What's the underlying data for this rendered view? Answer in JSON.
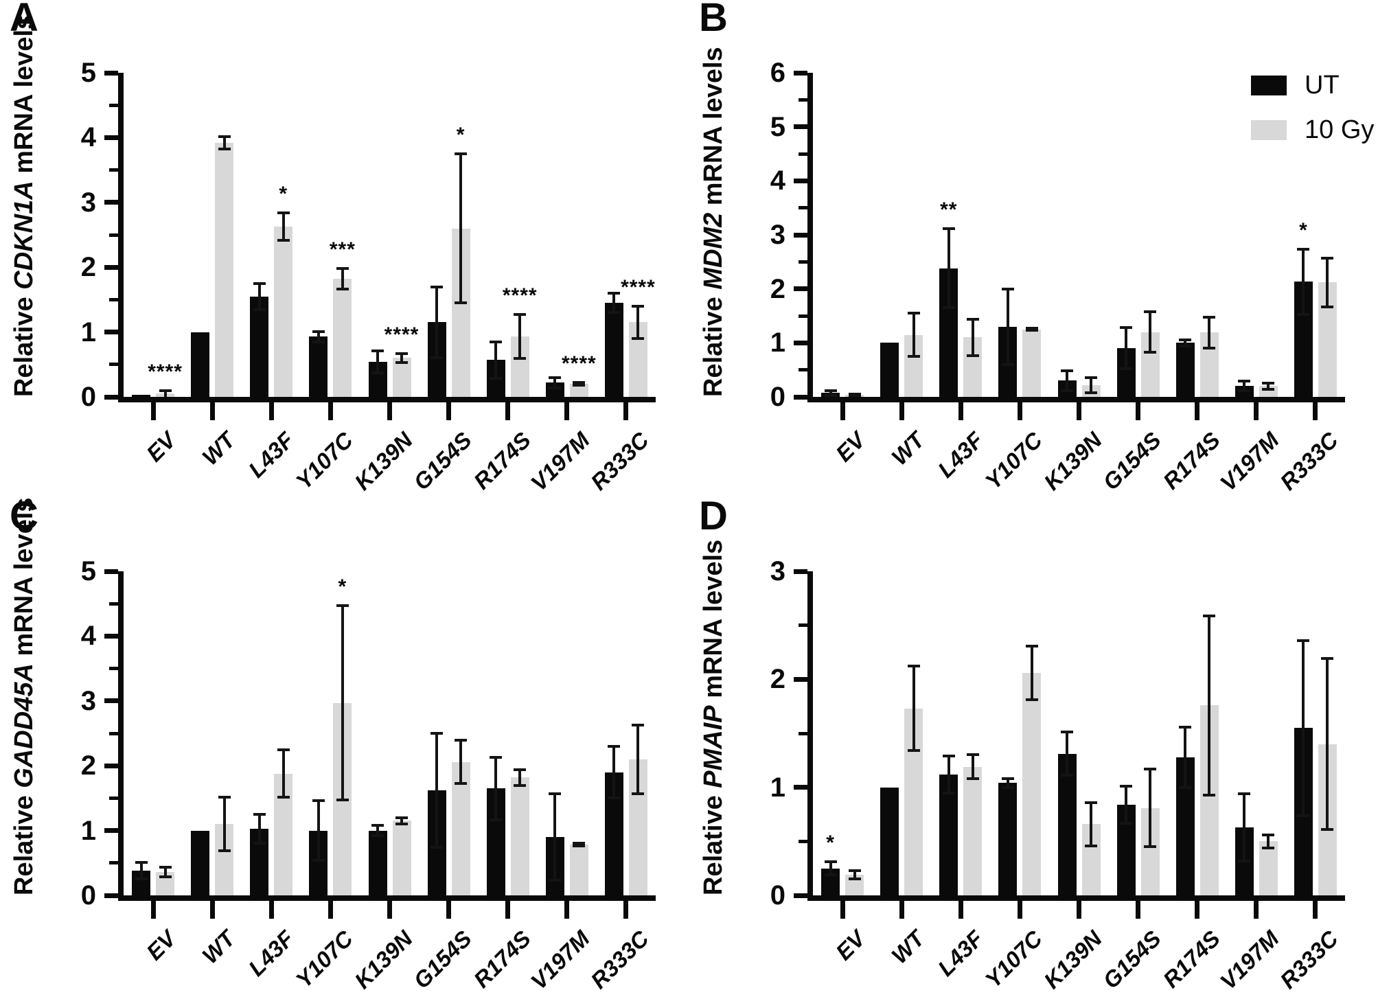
{
  "figure": {
    "description": "Four-panel bar figure of relative mRNA levels (UT vs 10 Gy) across p53 variants",
    "panels": [
      "A",
      "B",
      "C",
      "D"
    ]
  },
  "legend": {
    "items": [
      {
        "label": "UT",
        "color": "#0a0a0a"
      },
      {
        "label": "10 Gy",
        "color": "#d8d8d8"
      }
    ]
  },
  "chart_data": [
    {
      "panel": "A",
      "type": "bar",
      "ylabel_prefix": "Relative ",
      "gene": "CDKN1A",
      "ylabel_suffix": " mRNA levels",
      "ylim": [
        0,
        5
      ],
      "yticks": [
        0,
        1,
        2,
        3,
        4,
        5
      ],
      "minor_step": 0.5,
      "grid": false,
      "categories": [
        "EV",
        "WT",
        "L43F",
        "Y107C",
        "K139N",
        "G154S",
        "R174S",
        "V197M",
        "R333C"
      ],
      "series": [
        {
          "name": "UT",
          "color": "#0a0a0a",
          "values": [
            0.03,
            1.0,
            1.55,
            0.93,
            0.54,
            1.15,
            0.57,
            0.22,
            1.45
          ],
          "errors": [
            0,
            0,
            0.2,
            0.08,
            0.17,
            0.55,
            0.28,
            0.08,
            0.15
          ],
          "sig": [
            null,
            null,
            null,
            null,
            null,
            null,
            null,
            null,
            null
          ]
        },
        {
          "name": "10 Gy",
          "color": "#d8d8d8",
          "values": [
            0.05,
            3.92,
            2.63,
            1.82,
            0.6,
            2.6,
            0.93,
            0.2,
            1.15
          ],
          "errors": [
            0.05,
            0.1,
            0.21,
            0.16,
            0.07,
            1.15,
            0.34,
            0.02,
            0.25
          ],
          "sig": [
            "****",
            null,
            "*",
            "***",
            "****",
            "*",
            "****",
            "****",
            "****"
          ]
        }
      ]
    },
    {
      "panel": "B",
      "type": "bar",
      "ylabel_prefix": "Relative ",
      "gene": "MDM2",
      "ylabel_suffix": " mRNA levels",
      "ylim": [
        0,
        6
      ],
      "yticks": [
        0,
        1,
        2,
        3,
        4,
        5,
        6
      ],
      "minor_step": 0.5,
      "grid": false,
      "categories": [
        "EV",
        "WT",
        "L43F",
        "Y107C",
        "K139N",
        "G154S",
        "R174S",
        "V197M",
        "R333C"
      ],
      "series": [
        {
          "name": "UT",
          "color": "#0a0a0a",
          "values": [
            0.07,
            1.0,
            2.38,
            1.3,
            0.3,
            0.9,
            1.0,
            0.2,
            2.13
          ],
          "errors": [
            0.04,
            0,
            0.73,
            0.7,
            0.18,
            0.38,
            0.06,
            0.09,
            0.6
          ],
          "sig": [
            null,
            null,
            "**",
            null,
            null,
            null,
            null,
            null,
            "*"
          ]
        },
        {
          "name": "10 Gy",
          "color": "#d8d8d8",
          "values": [
            0.04,
            1.15,
            1.1,
            1.25,
            0.22,
            1.2,
            1.19,
            0.2,
            2.12
          ],
          "errors": [
            0.01,
            0.4,
            0.34,
            0.02,
            0.14,
            0.38,
            0.29,
            0.06,
            0.45
          ],
          "sig": [
            null,
            null,
            null,
            null,
            null,
            null,
            null,
            null,
            null
          ]
        }
      ]
    },
    {
      "panel": "C",
      "type": "bar",
      "ylabel_prefix": "Relative ",
      "gene": "GADD45A",
      "ylabel_suffix": " mRNA levels",
      "ylim": [
        0,
        5
      ],
      "yticks": [
        0,
        1,
        2,
        3,
        4,
        5
      ],
      "minor_step": 0.5,
      "grid": false,
      "categories": [
        "EV",
        "WT",
        "L43F",
        "Y107C",
        "K139N",
        "G154S",
        "R174S",
        "V197M",
        "R333C"
      ],
      "series": [
        {
          "name": "UT",
          "color": "#0a0a0a",
          "values": [
            0.38,
            1.0,
            1.03,
            1.0,
            1.0,
            1.62,
            1.65,
            0.9,
            1.9
          ],
          "errors": [
            0.13,
            0,
            0.22,
            0.46,
            0.08,
            0.88,
            0.48,
            0.67,
            0.4
          ],
          "sig": [
            null,
            null,
            null,
            null,
            null,
            null,
            null,
            null,
            null
          ]
        },
        {
          "name": "10 Gy",
          "color": "#d8d8d8",
          "values": [
            0.36,
            1.1,
            1.88,
            2.97,
            1.15,
            2.06,
            1.82,
            0.78,
            2.1
          ],
          "errors": [
            0.07,
            0.41,
            0.37,
            1.5,
            0.05,
            0.33,
            0.12,
            0.02,
            0.53
          ],
          "sig": [
            null,
            null,
            null,
            "*",
            null,
            null,
            null,
            null,
            null
          ]
        }
      ]
    },
    {
      "panel": "D",
      "type": "bar",
      "ylabel_prefix": "Relative ",
      "gene": "PMAIP",
      "ylabel_suffix": " mRNA levels",
      "ylim": [
        0,
        3
      ],
      "yticks": [
        0,
        1,
        2,
        3
      ],
      "minor_step": 0.5,
      "grid": false,
      "categories": [
        "EV",
        "WT",
        "L43F",
        "Y107C",
        "K139N",
        "G154S",
        "R174S",
        "V197M",
        "R333C"
      ],
      "series": [
        {
          "name": "UT",
          "color": "#0a0a0a",
          "values": [
            0.25,
            1.0,
            1.12,
            1.04,
            1.31,
            0.84,
            1.28,
            0.63,
            1.55
          ],
          "errors": [
            0.06,
            0,
            0.17,
            0.04,
            0.2,
            0.17,
            0.28,
            0.31,
            0.81
          ],
          "sig": [
            "*",
            null,
            null,
            null,
            null,
            null,
            null,
            null,
            null
          ]
        },
        {
          "name": "10 Gy",
          "color": "#d8d8d8",
          "values": [
            0.19,
            1.73,
            1.19,
            2.06,
            0.66,
            0.81,
            1.76,
            0.5,
            1.4
          ],
          "errors": [
            0.04,
            0.39,
            0.11,
            0.25,
            0.2,
            0.36,
            0.83,
            0.06,
            0.79
          ],
          "sig": [
            null,
            null,
            null,
            null,
            null,
            null,
            null,
            null,
            null
          ]
        }
      ]
    }
  ]
}
